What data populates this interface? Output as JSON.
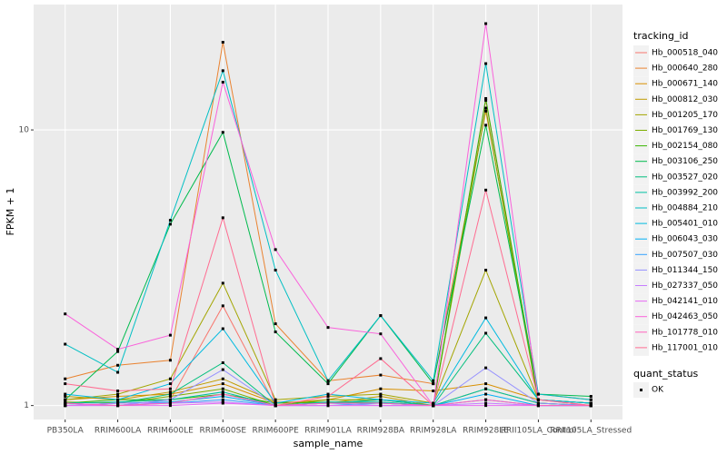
{
  "chart_data": {
    "type": "line",
    "log_scale_y": true,
    "grid": true,
    "x_label": "sample_name",
    "y_label": "FPKM + 1",
    "categories": [
      "PB350LA",
      "RRIM600LA",
      "RRIM600LE",
      "RRIM600SE",
      "RRIM600PE",
      "RRIM901LA",
      "RRIM928BA",
      "RRIM928LA",
      "RRIM928LE",
      "RRII105LA_Control",
      "RRII105LA_Stressed"
    ],
    "ylim": [
      0.89,
      28.5
    ],
    "yticks": [
      1,
      10
    ],
    "legend_title": "tracking_id",
    "point_legend_title": "quant_status",
    "point_legend_label": "OK",
    "point_color": "#000000",
    "series": [
      {
        "name": "Hb_000518_040",
        "color": "#F8766D",
        "values": [
          1.02,
          1.0,
          1.05,
          2.3,
          1.0,
          1.02,
          1.05,
          1.0,
          12.8,
          1.05,
          1.0
        ]
      },
      {
        "name": "Hb_000640_280",
        "color": "#EA8331",
        "values": [
          1.25,
          1.4,
          1.46,
          20.8,
          1.98,
          1.23,
          1.29,
          1.2,
          11.7,
          1.1,
          1.05
        ]
      },
      {
        "name": "Hb_000671_140",
        "color": "#D89000",
        "values": [
          1.05,
          1.08,
          1.1,
          1.2,
          1.02,
          1.05,
          1.15,
          1.13,
          1.2,
          1.05,
          1.02
        ]
      },
      {
        "name": "Hb_000812_030",
        "color": "#C09B00",
        "values": [
          1.08,
          1.05,
          1.12,
          1.25,
          1.03,
          1.02,
          1.08,
          1.0,
          1.15,
          1.02,
          1.0
        ]
      },
      {
        "name": "Hb_001205_170",
        "color": "#A3A500",
        "values": [
          1.05,
          1.1,
          1.25,
          2.78,
          1.05,
          1.08,
          1.1,
          1.02,
          3.1,
          1.05,
          1.02
        ]
      },
      {
        "name": "Hb_001769_130",
        "color": "#7CAE00",
        "values": [
          1.03,
          1.02,
          1.08,
          1.15,
          1.0,
          1.05,
          1.05,
          1.0,
          12.0,
          1.02,
          1.0
        ]
      },
      {
        "name": "Hb_002154_080",
        "color": "#39B600",
        "values": [
          1.02,
          1.05,
          1.05,
          1.1,
          1.02,
          1.03,
          1.02,
          1.0,
          13.0,
          1.05,
          1.02
        ]
      },
      {
        "name": "Hb_003106_250",
        "color": "#00BB4E",
        "values": [
          1.05,
          1.57,
          4.55,
          9.8,
          1.85,
          1.2,
          2.12,
          1.2,
          10.4,
          1.1,
          1.08
        ]
      },
      {
        "name": "Hb_003527_020",
        "color": "#00BF7D",
        "values": [
          1.0,
          1.02,
          1.1,
          1.43,
          1.0,
          1.02,
          1.05,
          1.0,
          1.83,
          1.05,
          1.02
        ]
      },
      {
        "name": "Hb_003992_200",
        "color": "#00C1A3",
        "values": [
          1.02,
          1.03,
          1.05,
          1.12,
          1.0,
          1.03,
          1.03,
          1.0,
          1.15,
          1.02,
          1.0
        ]
      },
      {
        "name": "Hb_004884_210",
        "color": "#00BFC4",
        "values": [
          1.67,
          1.32,
          4.7,
          16.4,
          3.1,
          1.23,
          2.12,
          1.23,
          17.4,
          1.1,
          1.05
        ]
      },
      {
        "name": "Hb_005401_010",
        "color": "#00BAE0",
        "values": [
          1.1,
          1.05,
          1.2,
          1.9,
          1.02,
          1.1,
          1.05,
          1.02,
          2.08,
          1.05,
          1.02
        ]
      },
      {
        "name": "Hb_006043_030",
        "color": "#00B0F6",
        "values": [
          1.0,
          1.02,
          1.03,
          1.08,
          1.0,
          1.02,
          1.02,
          1.0,
          1.1,
          1.0,
          1.0
        ]
      },
      {
        "name": "Hb_007507_030",
        "color": "#35A2FF",
        "values": [
          1.02,
          1.0,
          1.02,
          1.05,
          1.0,
          1.0,
          1.02,
          1.0,
          1.05,
          1.0,
          1.0
        ]
      },
      {
        "name": "Hb_011344_150",
        "color": "#9590FF",
        "values": [
          1.0,
          1.0,
          1.05,
          1.35,
          1.0,
          1.02,
          1.0,
          1.0,
          1.37,
          1.02,
          1.0
        ]
      },
      {
        "name": "Hb_027337_050",
        "color": "#C77CFF",
        "values": [
          1.0,
          1.02,
          1.02,
          1.03,
          1.0,
          1.0,
          1.0,
          1.0,
          1.02,
          1.0,
          1.0
        ]
      },
      {
        "name": "Hb_042141_010",
        "color": "#E76BF3",
        "values": [
          1.0,
          1.0,
          1.0,
          1.02,
          1.0,
          1.0,
          1.0,
          1.0,
          1.0,
          1.0,
          1.0
        ]
      },
      {
        "name": "Hb_042463_050",
        "color": "#FA62DB",
        "values": [
          2.15,
          1.6,
          1.8,
          14.9,
          3.68,
          1.92,
          1.82,
          1.0,
          24.3,
          1.05,
          1.0
        ]
      },
      {
        "name": "Hb_101778_010",
        "color": "#FF62BC",
        "values": [
          1.02,
          1.0,
          1.02,
          1.1,
          1.0,
          1.02,
          1.02,
          1.0,
          1.05,
          1.0,
          1.0
        ]
      },
      {
        "name": "Hb_117001_010",
        "color": "#FF6C91",
        "values": [
          1.2,
          1.13,
          1.15,
          4.8,
          1.0,
          1.08,
          1.48,
          1.0,
          6.05,
          1.05,
          1.0
        ]
      }
    ]
  }
}
